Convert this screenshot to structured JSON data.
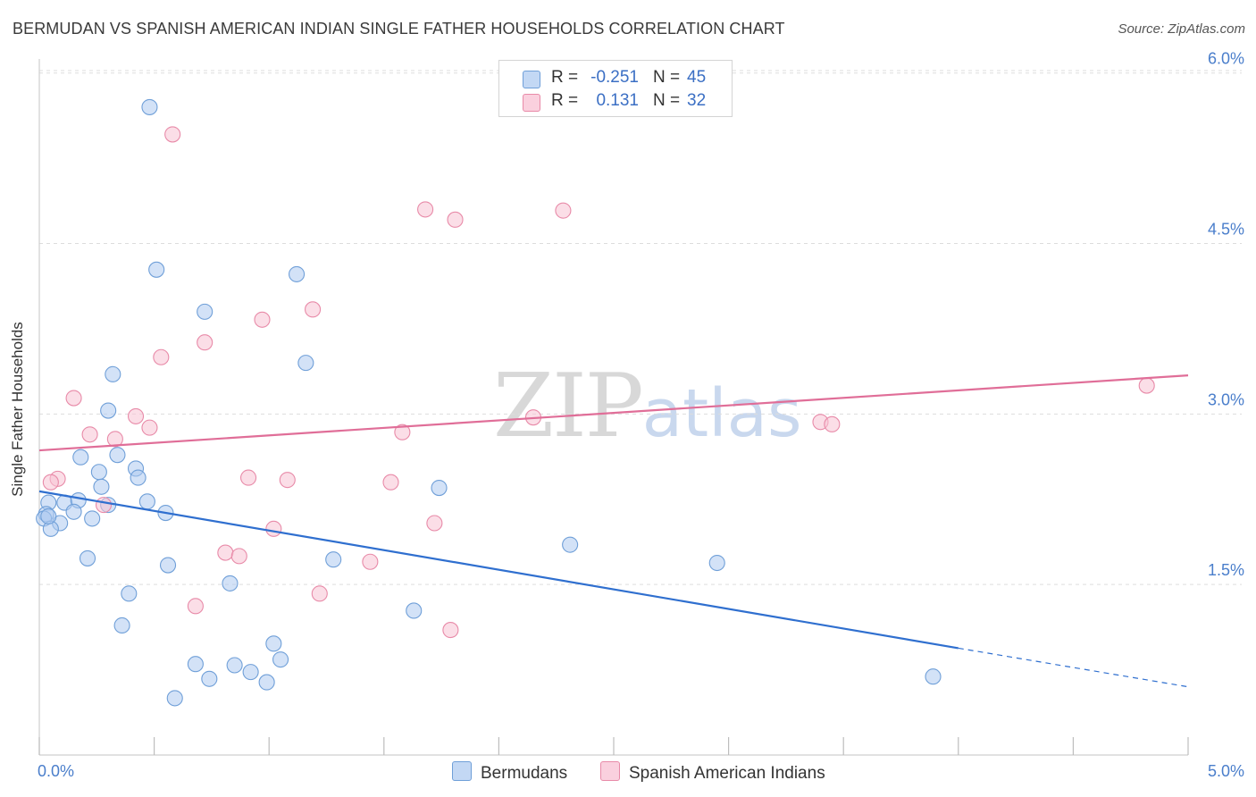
{
  "title": "BERMUDAN VS SPANISH AMERICAN INDIAN SINGLE FATHER HOUSEHOLDS CORRELATION CHART",
  "source": "Source: ZipAtlas.com",
  "watermark": {
    "zip": "ZIP",
    "atlas": "atlas"
  },
  "colors": {
    "blue_fill": "#aecbf0",
    "blue_stroke": "#6f9fd8",
    "blue_line": "#2f6fcf",
    "pink_fill": "#f8c3d4",
    "pink_stroke": "#e88aa8",
    "pink_line": "#e06e98",
    "grid": "#dddddd",
    "tick_label": "#4a7ecb"
  },
  "legend": {
    "rows": [
      {
        "r_label": "R =",
        "r_value": "-0.251",
        "n_label": "N =",
        "n_value": "45",
        "swatch": "blue"
      },
      {
        "r_label": "R =",
        "r_value": "0.131",
        "n_label": "N =",
        "n_value": "32",
        "swatch": "pink"
      }
    ],
    "series": [
      "Bermudans",
      "Spanish American Indians"
    ]
  },
  "chart_data": {
    "type": "scatter",
    "title": "BERMUDAN VS SPANISH AMERICAN INDIAN SINGLE FATHER HOUSEHOLDS CORRELATION CHART",
    "xlabel": "",
    "ylabel": "Single Father Households",
    "xlim": [
      0,
      5
    ],
    "ylim": [
      0,
      6.2
    ],
    "x_ticks": [
      "0.0%",
      "5.0%"
    ],
    "y_ticks": [
      {
        "value": 1.5,
        "label": "1.5%"
      },
      {
        "value": 3.0,
        "label": "3.0%"
      },
      {
        "value": 4.5,
        "label": "4.5%"
      },
      {
        "value": 6.0,
        "label": "6.0%"
      }
    ],
    "grid": true,
    "legend_placement": "top-center",
    "series": [
      {
        "name": "Bermudans",
        "color": "blue",
        "trend": {
          "x": [
            0.0,
            4.0
          ],
          "y": [
            2.32,
            0.94
          ],
          "dashed_to": [
            5.0,
            0.6
          ]
        },
        "points": [
          [
            0.48,
            5.7
          ],
          [
            0.51,
            4.27
          ],
          [
            0.72,
            3.9
          ],
          [
            1.12,
            4.23
          ],
          [
            1.16,
            3.45
          ],
          [
            0.32,
            3.35
          ],
          [
            0.3,
            3.03
          ],
          [
            0.34,
            2.64
          ],
          [
            0.18,
            2.62
          ],
          [
            0.26,
            2.49
          ],
          [
            0.42,
            2.52
          ],
          [
            0.43,
            2.44
          ],
          [
            0.04,
            2.22
          ],
          [
            0.11,
            2.22
          ],
          [
            0.17,
            2.24
          ],
          [
            0.27,
            2.36
          ],
          [
            0.03,
            2.12
          ],
          [
            0.02,
            2.08
          ],
          [
            0.09,
            2.04
          ],
          [
            0.15,
            2.14
          ],
          [
            0.23,
            2.08
          ],
          [
            0.3,
            2.2
          ],
          [
            0.47,
            2.23
          ],
          [
            0.55,
            2.13
          ],
          [
            0.05,
            1.99
          ],
          [
            0.21,
            1.73
          ],
          [
            0.56,
            1.67
          ],
          [
            0.39,
            1.42
          ],
          [
            0.83,
            1.51
          ],
          [
            1.28,
            1.72
          ],
          [
            1.74,
            2.35
          ],
          [
            2.31,
            1.85
          ],
          [
            2.95,
            1.69
          ],
          [
            0.36,
            1.14
          ],
          [
            1.63,
            1.27
          ],
          [
            1.02,
            0.98
          ],
          [
            0.68,
            0.8
          ],
          [
            0.74,
            0.67
          ],
          [
            0.85,
            0.79
          ],
          [
            0.92,
            0.73
          ],
          [
            0.99,
            0.64
          ],
          [
            1.05,
            0.84
          ],
          [
            0.59,
            0.5
          ],
          [
            3.89,
            0.69
          ],
          [
            0.04,
            2.1
          ]
        ]
      },
      {
        "name": "Spanish American Indians",
        "color": "pink",
        "trend": {
          "x": [
            0.0,
            5.0
          ],
          "y": [
            2.68,
            3.34
          ]
        },
        "points": [
          [
            0.58,
            5.46
          ],
          [
            1.68,
            4.8
          ],
          [
            1.81,
            4.71
          ],
          [
            2.28,
            4.79
          ],
          [
            1.19,
            3.92
          ],
          [
            0.97,
            3.83
          ],
          [
            0.72,
            3.63
          ],
          [
            0.53,
            3.5
          ],
          [
            0.15,
            3.14
          ],
          [
            0.42,
            2.98
          ],
          [
            0.48,
            2.88
          ],
          [
            0.22,
            2.82
          ],
          [
            0.33,
            2.78
          ],
          [
            1.58,
            2.84
          ],
          [
            2.15,
            2.97
          ],
          [
            3.4,
            2.93
          ],
          [
            3.45,
            2.91
          ],
          [
            4.82,
            3.25
          ],
          [
            0.08,
            2.43
          ],
          [
            0.05,
            2.4
          ],
          [
            0.91,
            2.44
          ],
          [
            1.08,
            2.42
          ],
          [
            1.53,
            2.4
          ],
          [
            0.28,
            2.2
          ],
          [
            1.02,
            1.99
          ],
          [
            1.72,
            2.04
          ],
          [
            0.81,
            1.78
          ],
          [
            0.87,
            1.75
          ],
          [
            1.44,
            1.7
          ],
          [
            1.22,
            1.42
          ],
          [
            0.68,
            1.31
          ],
          [
            1.79,
            1.1
          ]
        ]
      }
    ]
  }
}
